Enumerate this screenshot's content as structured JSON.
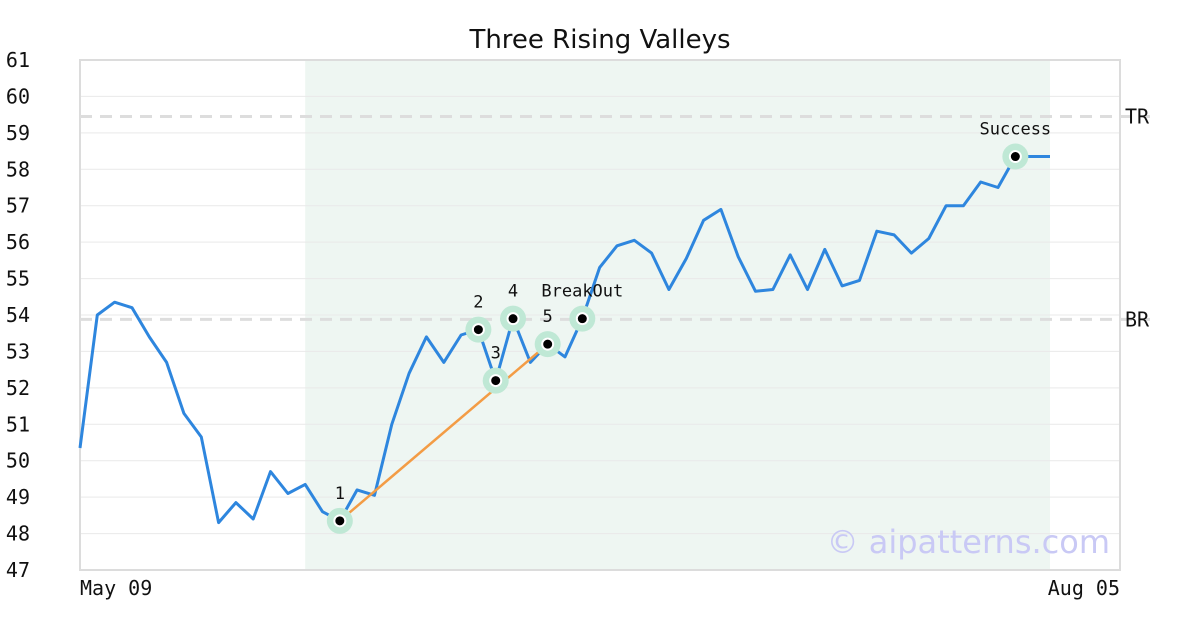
{
  "chart_data": {
    "type": "line",
    "title": "Three Rising Valleys",
    "xlabel": "",
    "ylabel": "",
    "ylim": [
      47,
      61
    ],
    "yticks": [
      47,
      48,
      49,
      50,
      51,
      52,
      53,
      54,
      55,
      56,
      57,
      58,
      59,
      60,
      61
    ],
    "x_labels": [
      "May 09",
      "Aug 05"
    ],
    "grid": true,
    "series": [
      {
        "color": "#2e86de",
        "values": [
          50.35,
          54.0,
          54.35,
          54.2,
          53.4,
          52.7,
          51.3,
          50.65,
          48.3,
          48.85,
          48.4,
          49.7,
          49.1,
          49.35,
          48.6,
          48.35,
          49.2,
          49.05,
          51.0,
          52.4,
          53.4,
          52.7,
          53.45,
          53.6,
          52.2,
          53.9,
          52.7,
          53.2,
          52.85,
          53.9,
          55.3,
          55.9,
          56.05,
          55.7,
          54.7,
          55.55,
          56.6,
          56.9,
          55.6,
          54.65,
          54.7,
          55.65,
          54.7,
          55.8,
          54.8,
          54.95,
          56.3,
          56.2,
          55.7,
          56.1,
          57.0,
          57.0,
          57.65,
          57.5,
          58.35,
          58.35,
          58.35
        ]
      }
    ],
    "trendline": {
      "color": "#f39c45",
      "from_index": 15,
      "to_index": 27
    },
    "shaded_range": {
      "from_index": 13,
      "to_index": 56,
      "color": "#eef6f2"
    },
    "levels": [
      {
        "label": "TR",
        "value": 59.45
      },
      {
        "label": "BR",
        "value": 53.88
      }
    ],
    "annotations": [
      {
        "label": "1",
        "index": 15
      },
      {
        "label": "2",
        "index": 23
      },
      {
        "label": "3",
        "index": 24
      },
      {
        "label": "4",
        "index": 25
      },
      {
        "label": "5",
        "index": 27
      },
      {
        "label": "BreakOut",
        "index": 29
      },
      {
        "label": "Success",
        "index": 54
      }
    ],
    "watermark": "© aipatterns.com"
  }
}
